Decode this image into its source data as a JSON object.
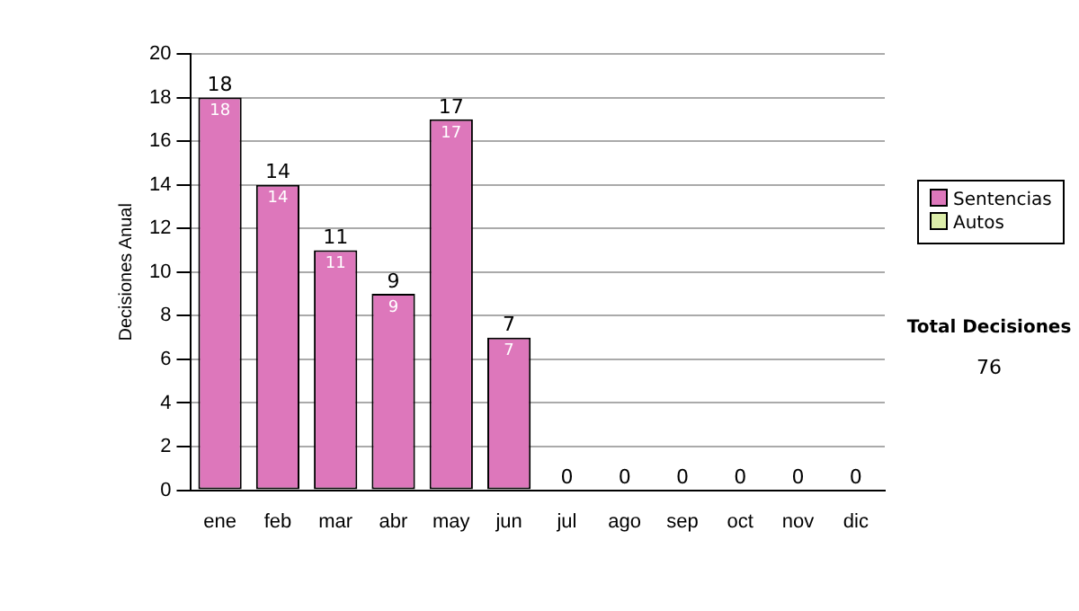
{
  "chart_data": {
    "type": "bar",
    "ylabel": "Decisiones Anual",
    "stacked": true,
    "categories": [
      "ene",
      "feb",
      "mar",
      "abr",
      "may",
      "jun",
      "jul",
      "ago",
      "sep",
      "oct",
      "nov",
      "dic"
    ],
    "series": [
      {
        "name": "Sentencias",
        "color": "#dd77bb",
        "values": [
          18,
          14,
          11,
          9,
          17,
          7,
          0,
          0,
          0,
          0,
          0,
          0
        ],
        "value_labels": [
          "18",
          "14",
          "11",
          "9",
          "17",
          "7",
          null,
          null,
          null,
          null,
          null,
          null
        ]
      },
      {
        "name": "Autos",
        "color": "#ddeeaa",
        "values": [
          0,
          0,
          0,
          0,
          0,
          0,
          0,
          0,
          0,
          0,
          0,
          0
        ]
      }
    ],
    "totals": [
      "18",
      "14",
      "11",
      "9",
      "17",
      "7",
      "0",
      "0",
      "0",
      "0",
      "0",
      "0"
    ],
    "ylim": [
      0,
      20
    ],
    "yticks": [
      0,
      2,
      4,
      6,
      8,
      10,
      12,
      14,
      16,
      18,
      20
    ],
    "grid": "y",
    "legend": "right",
    "annotations": [
      "Total Decisiones",
      "76"
    ]
  }
}
